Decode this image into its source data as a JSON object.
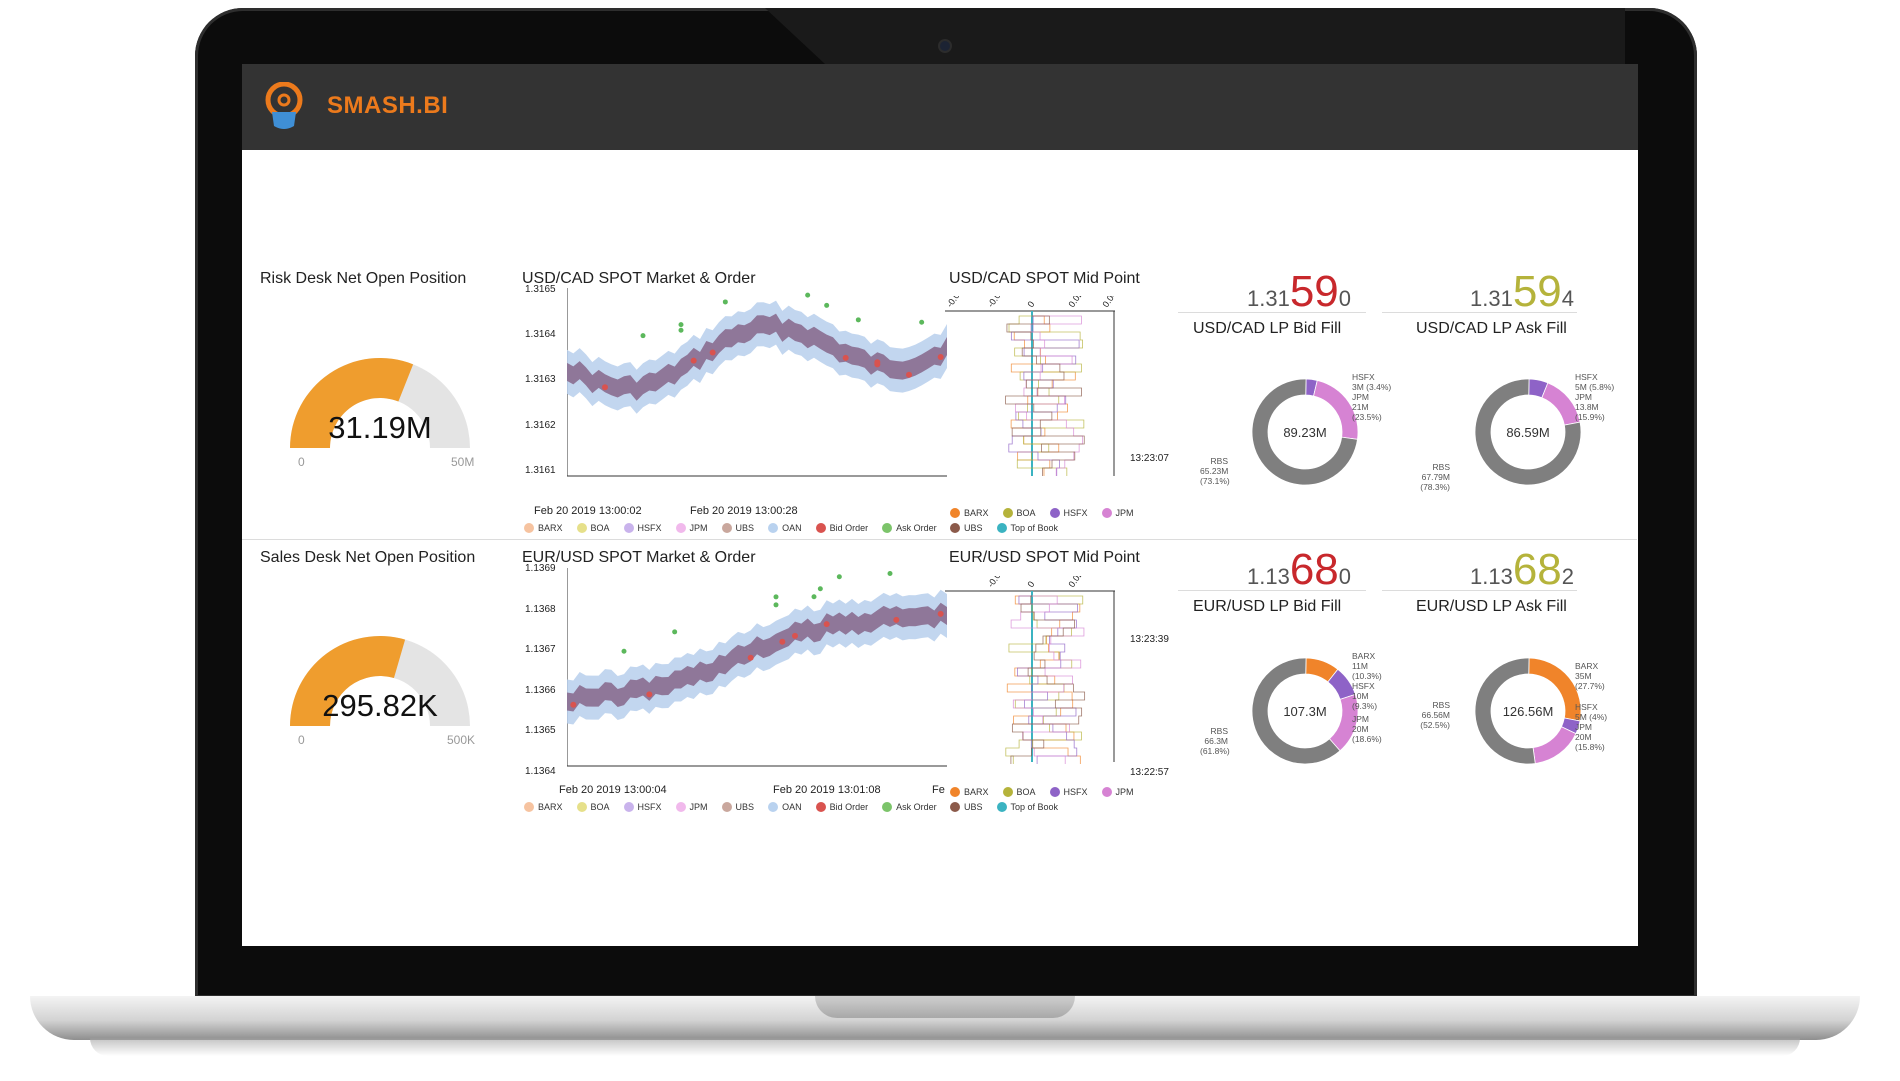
{
  "app": {
    "title": "SMASH.BI"
  },
  "colors": {
    "accent": "#ec7a1c",
    "bid": "#c8282c",
    "ask": "#b5b33b",
    "gauge_fill": "#ef9d2e",
    "gauge_track": "#e4e4e4",
    "band": "#a8c4e4",
    "price": "#8a6d8f",
    "mid_line": "#3bb3c1"
  },
  "risk": {
    "title": "Risk Desk Net Open Position",
    "gauge": {
      "value": "31.19M",
      "min": "0",
      "max": "50M",
      "fill_fraction": 0.62
    },
    "market_chart": {
      "title": "USD/CAD SPOT Market & Order",
      "y_ticks": [
        "1.3165",
        "1.3164",
        "1.3163",
        "1.3162",
        "1.3161"
      ],
      "x_ticks": [
        "Feb 20 2019 13:00:02",
        "Feb 20 2019 13:00:28"
      ]
    },
    "mid_chart": {
      "title": "USD/CAD SPOT Mid Point",
      "x_ticks": [
        "-0.04",
        "-0.02",
        "0",
        "0.02",
        "0.04"
      ],
      "time_label": "13:23:07"
    },
    "bid": {
      "prefix": "1.31",
      "big": "59",
      "pip": "0",
      "title": "USD/CAD LP Bid Fill",
      "total": "89.23M",
      "slices": [
        {
          "label": "HSFX",
          "amount": "3M (3.4%)",
          "value": 3.4,
          "color": "#8e63c7"
        },
        {
          "label": "JPM",
          "amount": "21M",
          "pct": "(23.5%)",
          "value": 23.5,
          "color": "#d683d3"
        },
        {
          "label": "RBS",
          "amount": "65.23M",
          "pct": "(73.1%)",
          "value": 73.1,
          "color": "#7f7f7f"
        }
      ]
    },
    "ask": {
      "prefix": "1.31",
      "big": "59",
      "pip": "4",
      "title": "USD/CAD LP Ask Fill",
      "total": "86.59M",
      "slices": [
        {
          "label": "HSFX",
          "amount": "5M (5.8%)",
          "value": 5.8,
          "color": "#8e63c7"
        },
        {
          "label": "JPM",
          "amount": "13.8M",
          "pct": "(15.9%)",
          "value": 15.9,
          "color": "#d683d3"
        },
        {
          "label": "RBS",
          "amount": "67.79M",
          "pct": "(78.3%)",
          "value": 78.3,
          "color": "#7f7f7f"
        }
      ]
    }
  },
  "sales": {
    "title": "Sales Desk Net Open Position",
    "gauge": {
      "value": "295.82K",
      "min": "0",
      "max": "500K",
      "fill_fraction": 0.59
    },
    "market_chart": {
      "title": "EUR/USD SPOT Market & Order",
      "y_ticks": [
        "1.1369",
        "1.1368",
        "1.1367",
        "1.1366",
        "1.1365",
        "1.1364"
      ],
      "x_ticks": [
        "Feb 20 2019 13:00:04",
        "Feb 20 2019 13:01:08",
        "Fe"
      ]
    },
    "mid_chart": {
      "title": "EUR/USD SPOT Mid Point",
      "x_ticks": [
        "-0.02",
        "0",
        "0.02"
      ],
      "time_labels": [
        "13:23:39",
        "13:22:57"
      ]
    },
    "bid": {
      "prefix": "1.13",
      "big": "68",
      "pip": "0",
      "title": "EUR/USD LP Bid Fill",
      "total": "107.3M",
      "slices": [
        {
          "label": "BARX",
          "amount": "11M",
          "pct": "(10.3%)",
          "value": 10.3,
          "color": "#f0842a"
        },
        {
          "label": "HSFX",
          "amount": "10M",
          "pct": "(9.3%)",
          "value": 9.3,
          "color": "#8e63c7"
        },
        {
          "label": "JPM",
          "amount": "20M",
          "pct": "(18.6%)",
          "value": 18.6,
          "color": "#d683d3"
        },
        {
          "label": "RBS",
          "amount": "66.3M",
          "pct": "(61.8%)",
          "value": 61.8,
          "color": "#7f7f7f"
        }
      ]
    },
    "ask": {
      "prefix": "1.13",
      "big": "68",
      "pip": "2",
      "title": "EUR/USD LP Ask Fill",
      "total": "126.56M",
      "slices": [
        {
          "label": "BARX",
          "amount": "35M",
          "pct": "(27.7%)",
          "value": 27.7,
          "color": "#f0842a"
        },
        {
          "label": "HSFX",
          "amount": "5M (4%)",
          "value": 4,
          "color": "#8e63c7"
        },
        {
          "label": "JPM",
          "amount": "20M",
          "pct": "(15.8%)",
          "value": 15.8,
          "color": "#d683d3"
        },
        {
          "label": "RBS",
          "amount": "66.56M",
          "pct": "(52.5%)",
          "value": 52.5,
          "color": "#7f7f7f"
        }
      ]
    }
  },
  "market_legend": [
    {
      "label": "BARX",
      "color": "#f6c3a0"
    },
    {
      "label": "BOA",
      "color": "#e6e08a"
    },
    {
      "label": "HSFX",
      "color": "#c9b3ec"
    },
    {
      "label": "JPM",
      "color": "#f1b9ec"
    },
    {
      "label": "UBS",
      "color": "#c9a79d"
    },
    {
      "label": "OAN",
      "color": "#b9d2ef"
    },
    {
      "label": "Bid Order",
      "color": "#d9534f"
    },
    {
      "label": "Ask Order",
      "color": "#7cc46a"
    }
  ],
  "mid_legend": [
    {
      "label": "BARX",
      "color": "#f0842a"
    },
    {
      "label": "BOA",
      "color": "#b5b33b"
    },
    {
      "label": "HSFX",
      "color": "#8e63c7"
    },
    {
      "label": "JPM",
      "color": "#d683d3"
    },
    {
      "label": "UBS",
      "color": "#8b5a4a"
    },
    {
      "label": "Top of Book",
      "color": "#3bb3c1"
    }
  ]
}
